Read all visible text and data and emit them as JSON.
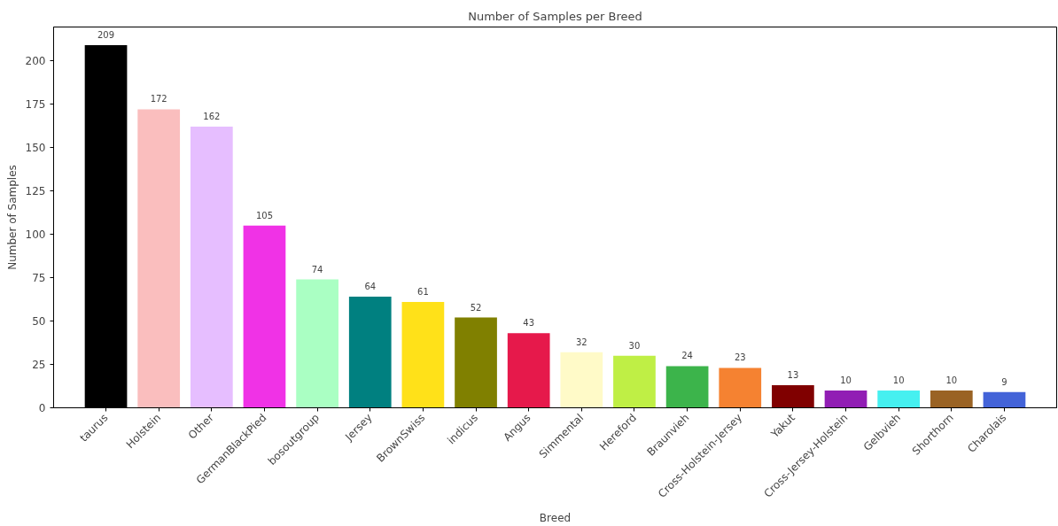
{
  "chart_data": {
    "type": "bar",
    "title": "Number of Samples per Breed",
    "xlabel": "Breed",
    "ylabel": "Number of Samples",
    "categories": [
      "taurus",
      "Holstein",
      "Other",
      "GermanBlackPied",
      "bosoutgroup",
      "Jersey",
      "BrownSwiss",
      "indicus",
      "Angus",
      "Simmental",
      "Hereford",
      "Braunvieh",
      "Cross-Holstein-Jersey",
      "Yakut",
      "Cross-Jersey-Holstein",
      "Gelbvieh",
      "Shorthorn",
      "Charolais"
    ],
    "values": [
      209,
      172,
      162,
      105,
      74,
      64,
      61,
      52,
      43,
      32,
      30,
      24,
      23,
      13,
      10,
      10,
      10,
      9
    ],
    "colors": [
      "#000000",
      "#fabebe",
      "#e6beff",
      "#f032e6",
      "#aaffc3",
      "#008080",
      "#ffe119",
      "#808000",
      "#e6194b",
      "#fffac8",
      "#bfef45",
      "#3cb44b",
      "#f58231",
      "#800000",
      "#911eb4",
      "#46f0f0",
      "#9a6324",
      "#4363d8"
    ],
    "ylim": [
      0,
      219.45
    ],
    "yticks": [
      0,
      25,
      50,
      75,
      100,
      125,
      150,
      175,
      200
    ],
    "data_labels": true,
    "grid": false
  }
}
